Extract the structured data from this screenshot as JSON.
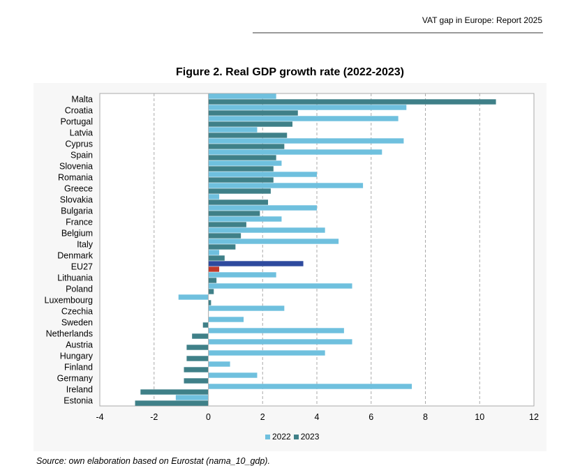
{
  "header": {
    "text": "VAT gap in Europe: Report 2025"
  },
  "title": "Figure 2. Real GDP growth rate (2022-2023)",
  "source": "Source: own elaboration based on Eurostat (nama_10_gdp).",
  "colors": {
    "s2022": "#6fc0de",
    "s2023": "#3f8088",
    "eu2022": "#2e4a9e",
    "eu2023": "#c0392b",
    "grid": "#a9a9a9",
    "plot_bg": "#f7f7f7"
  },
  "chart_data": {
    "type": "bar",
    "orientation": "horizontal",
    "title": "Figure 2. Real GDP growth rate (2022-2023)",
    "categories": [
      "Malta",
      "Croatia",
      "Portugal",
      "Latvia",
      "Cyprus",
      "Spain",
      "Slovenia",
      "Romania",
      "Greece",
      "Slovakia",
      "Bulgaria",
      "France",
      "Belgium",
      "Italy",
      "Denmark",
      "EU27",
      "Lithuania",
      "Poland",
      "Luxembourg",
      "Czechia",
      "Sweden",
      "Netherlands",
      "Austria",
      "Hungary",
      "Finland",
      "Germany",
      "Ireland",
      "Estonia"
    ],
    "series": [
      {
        "name": "2022",
        "values": [
          2.5,
          7.3,
          7.0,
          1.8,
          7.2,
          6.4,
          2.7,
          4.0,
          5.7,
          0.4,
          4.0,
          2.7,
          4.3,
          4.8,
          0.4,
          3.5,
          2.5,
          5.3,
          -1.1,
          2.8,
          1.3,
          5.0,
          5.3,
          4.3,
          0.8,
          1.8,
          7.5,
          -1.2
        ]
      },
      {
        "name": "2023",
        "values": [
          10.6,
          3.3,
          3.1,
          2.9,
          2.8,
          2.5,
          2.4,
          2.4,
          2.3,
          2.2,
          1.9,
          1.4,
          1.2,
          1.0,
          0.6,
          0.4,
          0.3,
          0.2,
          0.1,
          0.0,
          -0.2,
          -0.6,
          -0.8,
          -0.8,
          -0.9,
          -0.9,
          -2.5,
          -2.7
        ]
      }
    ],
    "xlim": [
      -4,
      12
    ],
    "xticks": [
      "-4",
      "-2",
      "0",
      "2",
      "4",
      "6",
      "8",
      "10",
      "12"
    ],
    "legend": {
      "items": [
        "2022",
        "2023"
      ],
      "position": "bottom"
    }
  }
}
